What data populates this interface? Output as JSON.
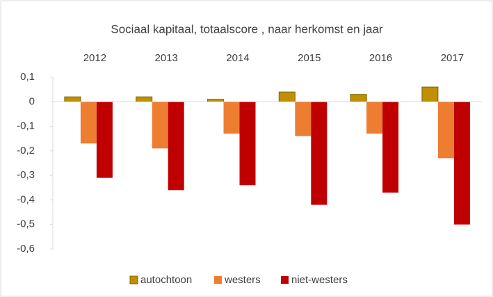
{
  "chart_data": {
    "type": "bar",
    "title": "Sociaal kapitaal, totaalscore , naar herkomst en jaar",
    "categories": [
      "2012",
      "2013",
      "2014",
      "2015",
      "2016",
      "2017"
    ],
    "series": [
      {
        "name": "autochtoon",
        "color": "#bf9000",
        "values": [
          0.02,
          0.02,
          0.01,
          0.04,
          0.03,
          0.06
        ]
      },
      {
        "name": "westers",
        "color": "#ed7d31",
        "values": [
          -0.17,
          -0.19,
          -0.13,
          -0.14,
          -0.13,
          -0.23
        ]
      },
      {
        "name": "niet-westers",
        "color": "#c00000",
        "values": [
          -0.31,
          -0.36,
          -0.34,
          -0.42,
          -0.37,
          -0.5
        ]
      }
    ],
    "ylim": [
      -0.6,
      0.1
    ],
    "yticks": [
      {
        "value": 0.1,
        "label": "0,1"
      },
      0,
      {
        "value": -0.1,
        "label": "-0,1"
      },
      {
        "value": -0.2,
        "label": "-0,2"
      },
      {
        "value": -0.3,
        "label": "-0,3"
      },
      {
        "value": -0.4,
        "label": "-0,4"
      },
      {
        "value": -0.5,
        "label": "-0,5"
      },
      {
        "value": -0.6,
        "label": "-0,6"
      }
    ],
    "grid": false,
    "legend": "bottom"
  }
}
